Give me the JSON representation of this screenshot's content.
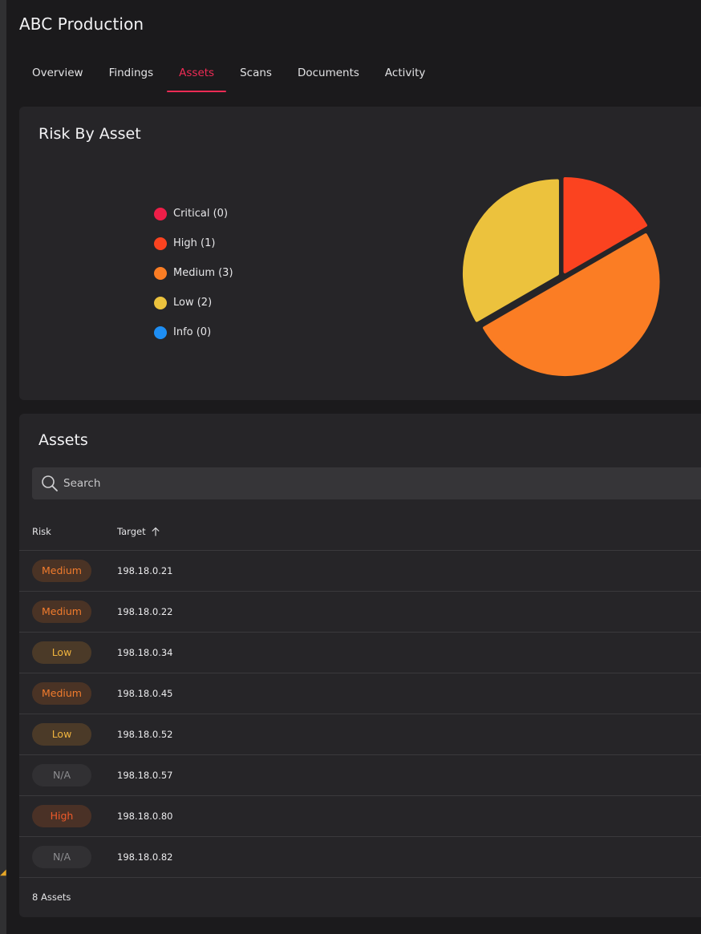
{
  "app": {
    "title": "ABC Production"
  },
  "tabs": [
    {
      "label": "Overview",
      "active": false
    },
    {
      "label": "Findings",
      "active": false
    },
    {
      "label": "Assets",
      "active": true
    },
    {
      "label": "Scans",
      "active": false
    },
    {
      "label": "Documents",
      "active": false
    },
    {
      "label": "Activity",
      "active": false
    }
  ],
  "risk_card": {
    "title": "Risk By Asset",
    "legend": [
      {
        "label": "Critical (0)",
        "color": "#ee1e48"
      },
      {
        "label": "High (1)",
        "color": "#fb4320"
      },
      {
        "label": "Medium (3)",
        "color": "#fb7d24"
      },
      {
        "label": "Low (2)",
        "color": "#ecc23d"
      },
      {
        "label": "Info (0)",
        "color": "#1e8ef3"
      }
    ]
  },
  "chart_data": {
    "type": "pie",
    "categories": [
      "Critical",
      "High",
      "Medium",
      "Low",
      "Info"
    ],
    "values": [
      0,
      1,
      3,
      2,
      0
    ],
    "colors": [
      "#ee1e48",
      "#fb4320",
      "#fb7d24",
      "#ecc23d",
      "#1e8ef3"
    ]
  },
  "assets_card": {
    "title": "Assets",
    "search": {
      "placeholder": "Search",
      "value": ""
    },
    "columns": {
      "risk": "Risk",
      "target": "Target"
    },
    "rows": [
      {
        "risk": "Medium",
        "level": "medium",
        "target": "198.18.0.21"
      },
      {
        "risk": "Medium",
        "level": "medium",
        "target": "198.18.0.22"
      },
      {
        "risk": "Low",
        "level": "low",
        "target": "198.18.0.34"
      },
      {
        "risk": "Medium",
        "level": "medium",
        "target": "198.18.0.45"
      },
      {
        "risk": "Low",
        "level": "low",
        "target": "198.18.0.52"
      },
      {
        "risk": "N/A",
        "level": "na",
        "target": "198.18.0.57"
      },
      {
        "risk": "High",
        "level": "high",
        "target": "198.18.0.80"
      },
      {
        "risk": "N/A",
        "level": "na",
        "target": "198.18.0.82"
      }
    ],
    "footer": "8 Assets"
  },
  "icons": {
    "search": "search-icon",
    "sort": "arrow-up-icon"
  }
}
